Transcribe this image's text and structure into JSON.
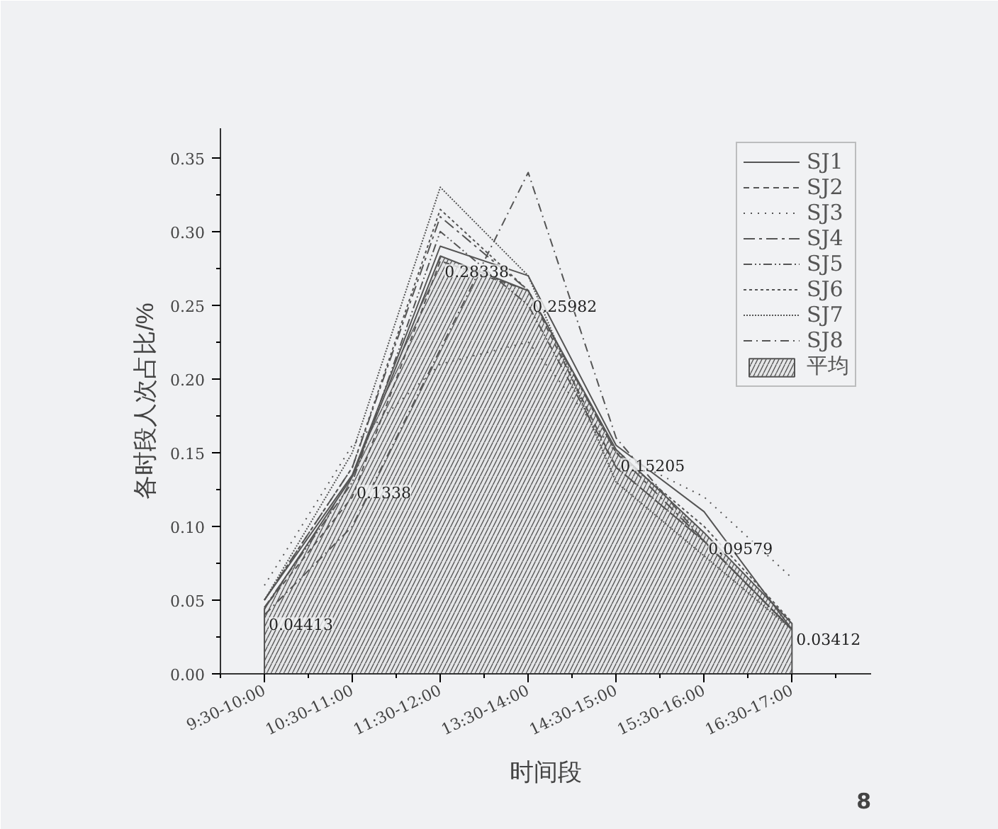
{
  "chart_data": {
    "type": "line",
    "xlabel": "时间段",
    "ylabel": "各时段人次占比/%",
    "categories": [
      "9:30-10:00",
      "10:30-11:00",
      "11:30-12:00",
      "13:30-14:00",
      "14:30-15:00",
      "15:30-16:00",
      "16:30-17:00"
    ],
    "ylim": [
      0,
      0.37
    ],
    "yticks": [
      {
        "value": 0,
        "label": "0.00"
      },
      {
        "value": 0.05,
        "label": "0.05"
      },
      {
        "value": 0.1,
        "label": "0.10"
      },
      {
        "value": 0.15,
        "label": "0.15"
      },
      {
        "value": 0.2,
        "label": "0.20"
      },
      {
        "value": 0.25,
        "label": "0.25"
      },
      {
        "value": 0.3,
        "label": "0.30"
      },
      {
        "value": 0.35,
        "label": "0.35"
      }
    ],
    "grid": false,
    "legend": "top right",
    "marker": "none",
    "series": [
      {
        "name": "SJ1",
        "color": "#555555",
        "line_style": "solid",
        "values": [
          0.05,
          0.135,
          0.29,
          0.27,
          0.155,
          0.11,
          0.03
        ]
      },
      {
        "name": "SJ2",
        "color": "#555555",
        "line_style": "dashed",
        "values": [
          0.045,
          0.12,
          0.28,
          0.26,
          0.14,
          0.09,
          0.03
        ]
      },
      {
        "name": "SJ3",
        "color": "#555555",
        "line_style": "dotted",
        "values": [
          0.06,
          0.155,
          0.21,
          0.225,
          0.15,
          0.12,
          0.065
        ]
      },
      {
        "name": "SJ4",
        "color": "#555555",
        "line_style": "dashed",
        "values": [
          0.05,
          0.14,
          0.31,
          0.26,
          0.15,
          0.09,
          0.03
        ]
      },
      {
        "name": "SJ5",
        "color": "#555555",
        "line_style": "dashed",
        "values": [
          0.045,
          0.13,
          0.3,
          0.25,
          0.14,
          0.09,
          0.03
        ]
      },
      {
        "name": "SJ6",
        "color": "#555555",
        "line_style": "dotted",
        "values": [
          0.05,
          0.14,
          0.315,
          0.26,
          0.15,
          0.1,
          0.035
        ]
      },
      {
        "name": "SJ7",
        "color": "#555555",
        "line_style": "dotted",
        "values": [
          0.05,
          0.15,
          0.33,
          0.27,
          0.13,
          0.08,
          0.03
        ]
      },
      {
        "name": "SJ8",
        "color": "#555555",
        "line_style": "dashed",
        "values": [
          0.04,
          0.1,
          0.22,
          0.34,
          0.16,
          0.09,
          0.03
        ]
      },
      {
        "name": "平均",
        "type": "area",
        "color": "#555555",
        "data_labels": true,
        "value_labels": [
          "0.04413",
          "0.1338",
          "0.28338",
          "0.25982",
          "0.15205",
          "0.09579",
          "0.03412"
        ],
        "values": [
          0.04413,
          0.1338,
          0.28338,
          0.25982,
          0.15205,
          0.09579,
          0.03412
        ]
      }
    ],
    "annotations": [
      "8"
    ]
  }
}
